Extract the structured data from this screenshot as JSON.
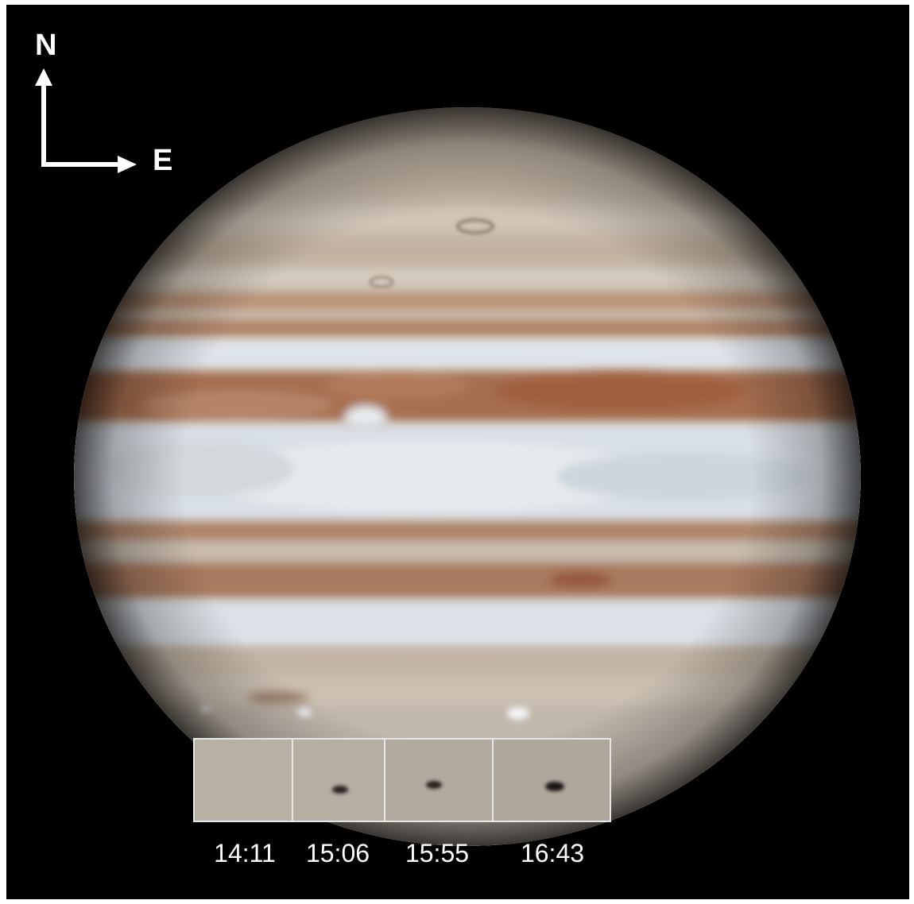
{
  "compass": {
    "north": "N",
    "east": "E"
  },
  "inset_panels": {
    "times": [
      "14:11",
      "15:06",
      "15:55",
      "16:43"
    ],
    "impact_spot_visible": [
      false,
      true,
      true,
      true
    ]
  },
  "colors": {
    "background": "#000000",
    "labels": "#ffffff",
    "panel_border": "#e6e6e6",
    "belt_brown": "#a46a4c",
    "zone_light": "#dde3ea",
    "planet_base": "#c7bcae"
  }
}
